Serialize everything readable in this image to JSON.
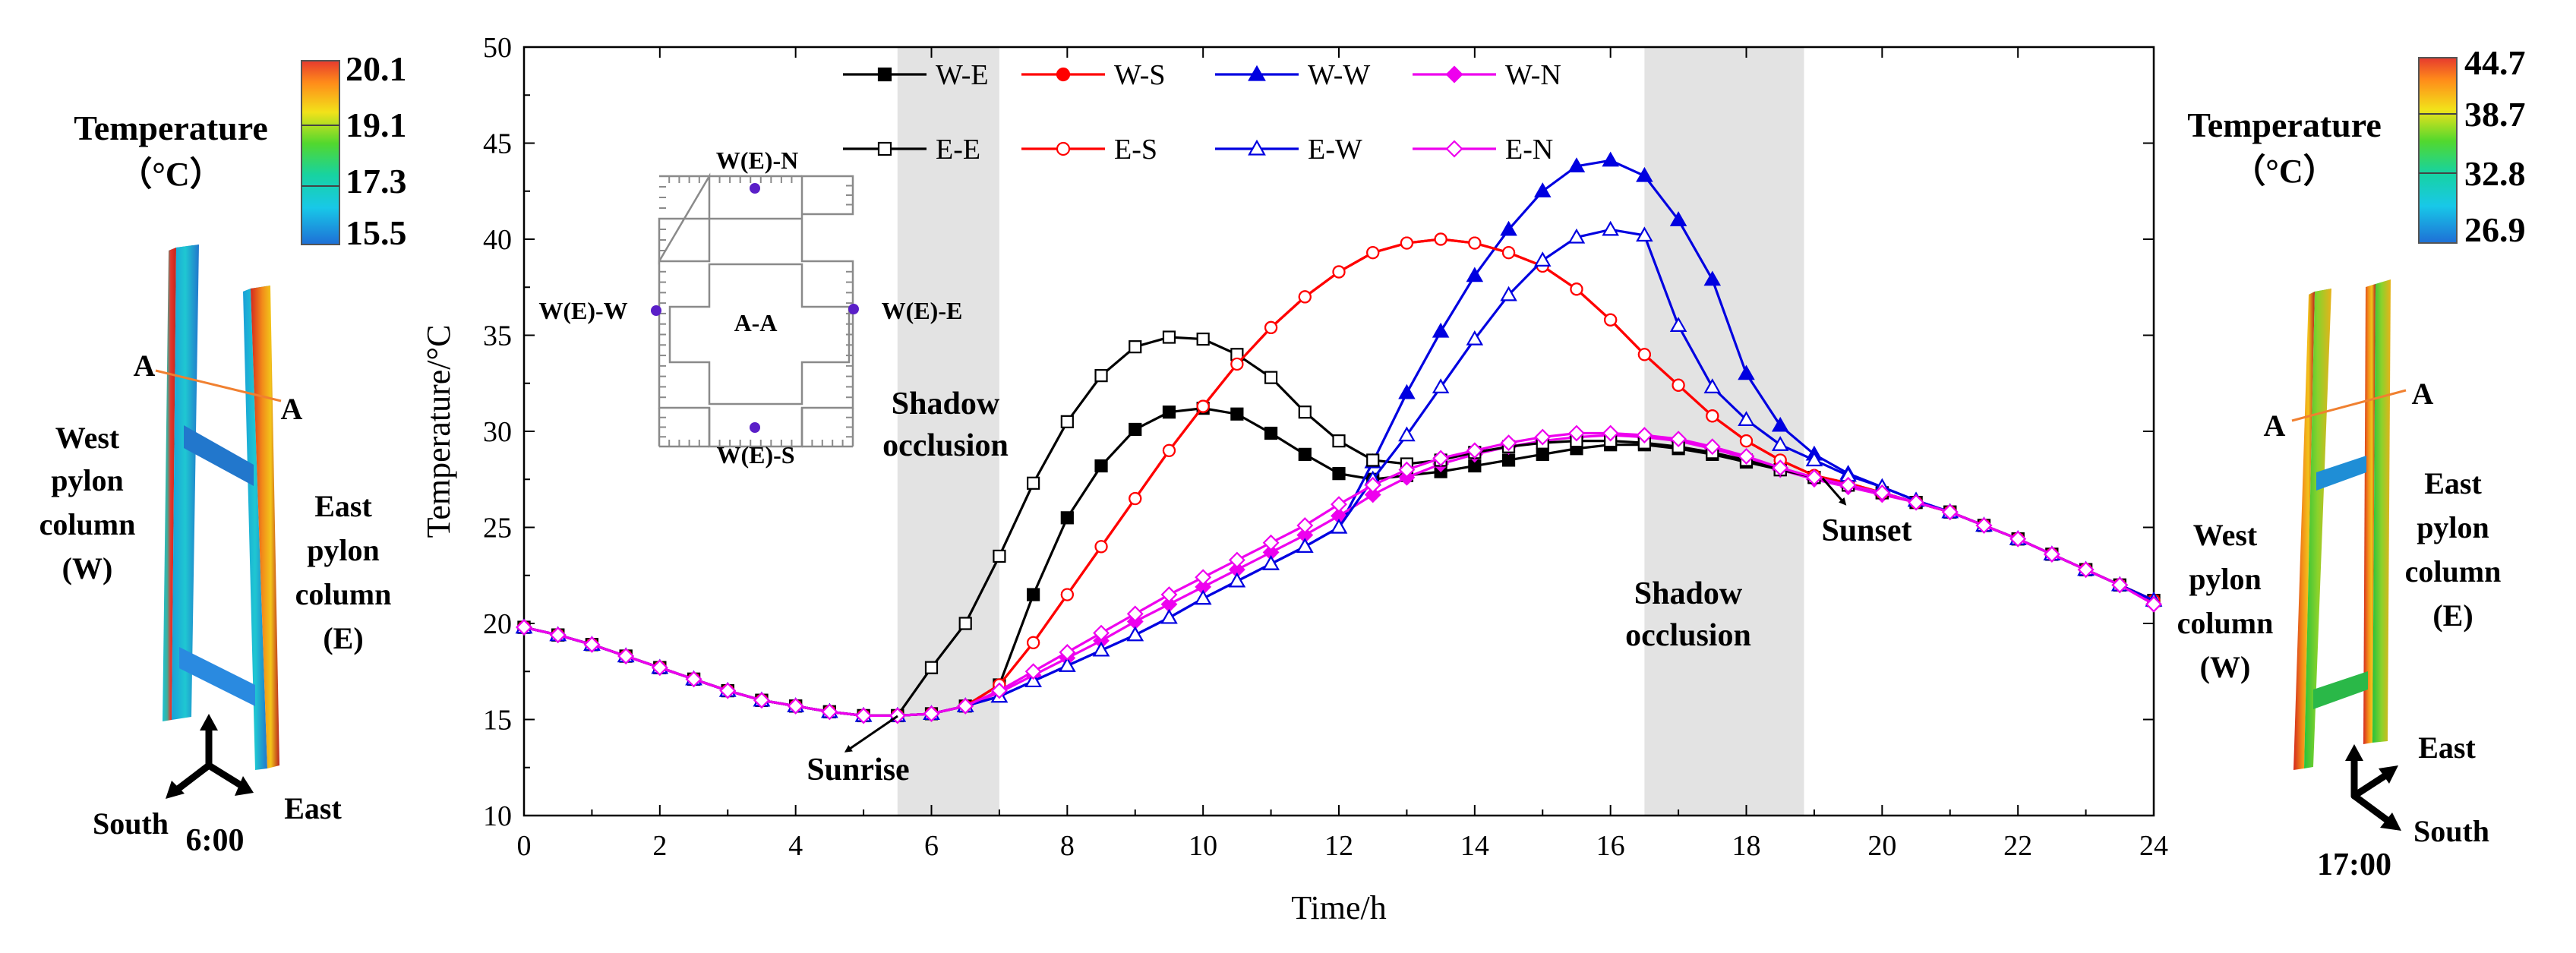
{
  "chart_data": {
    "type": "line",
    "xlabel": "Time/h",
    "ylabel": "Temperature/°C",
    "xlim": [
      0,
      24
    ],
    "ylim": [
      10,
      50
    ],
    "xticks": [
      "0",
      "2",
      "4",
      "6",
      "8",
      "10",
      "12",
      "14",
      "16",
      "18",
      "20",
      "22",
      "24"
    ],
    "yticks": [
      "10",
      "15",
      "20",
      "25",
      "30",
      "35",
      "40",
      "45",
      "50"
    ],
    "shaded_intervals": [
      [
        5.5,
        7.0
      ],
      [
        16.5,
        18.85
      ]
    ],
    "annotations": {
      "shadow_left": [
        "Shadow",
        "occlusion"
      ],
      "shadow_right": [
        "Shadow",
        "occlusion"
      ],
      "sunrise": "Sunrise",
      "sunset": "Sunset"
    },
    "x": [
      0,
      0.5,
      1,
      1.5,
      2,
      2.5,
      3,
      3.5,
      4,
      4.5,
      5,
      5.5,
      6,
      6.5,
      7,
      7.5,
      8,
      8.5,
      9,
      9.5,
      10,
      10.5,
      11,
      11.5,
      12,
      12.5,
      13,
      13.5,
      14,
      14.5,
      15,
      15.5,
      16,
      16.5,
      17,
      17.5,
      18,
      18.5,
      19,
      19.5,
      20,
      20.5,
      21,
      21.5,
      22,
      22.5,
      23,
      23.5,
      24
    ],
    "series": [
      {
        "name": "W-E",
        "color": "#000000",
        "marker": "square",
        "filled": true,
        "values": [
          19.8,
          19.4,
          18.9,
          18.3,
          17.7,
          17.1,
          16.5,
          16.0,
          15.7,
          15.4,
          15.2,
          15.2,
          15.3,
          15.7,
          16.8,
          21.5,
          25.5,
          28.2,
          30.1,
          31.0,
          31.2,
          30.9,
          29.9,
          28.8,
          27.8,
          27.5,
          27.7,
          27.9,
          28.2,
          28.5,
          28.8,
          29.1,
          29.3,
          29.3,
          29.1,
          28.8,
          28.4,
          28.0,
          27.6,
          27.2,
          26.8,
          26.3,
          25.8,
          25.1,
          24.4,
          23.6,
          22.8,
          22.0,
          21.2
        ]
      },
      {
        "name": "W-S",
        "color": "#ff0000",
        "marker": "circle",
        "filled": true,
        "values": [
          19.8,
          19.4,
          18.9,
          18.3,
          17.7,
          17.1,
          16.5,
          16.0,
          15.7,
          15.4,
          15.2,
          15.2,
          15.3,
          15.7,
          16.8,
          19.0,
          21.5,
          24.0,
          26.5,
          29.0,
          31.3,
          33.5,
          35.4,
          37.0,
          38.3,
          39.3,
          39.8,
          40.0,
          39.8,
          39.3,
          38.6,
          37.4,
          35.8,
          34.0,
          32.4,
          30.8,
          29.5,
          28.5,
          27.7,
          27.3,
          26.8,
          26.3,
          25.8,
          25.1,
          24.4,
          23.6,
          22.8,
          22.0,
          21.2
        ]
      },
      {
        "name": "W-W",
        "color": "#0000e0",
        "marker": "triangle",
        "filled": true,
        "values": [
          19.8,
          19.4,
          18.9,
          18.3,
          17.7,
          17.1,
          16.5,
          16.0,
          15.7,
          15.4,
          15.2,
          15.2,
          15.3,
          15.7,
          16.2,
          17.0,
          17.8,
          18.6,
          19.4,
          20.3,
          21.3,
          22.2,
          23.1,
          24.0,
          25.0,
          28.4,
          32.0,
          35.2,
          38.1,
          40.5,
          42.5,
          43.8,
          44.1,
          43.3,
          41.0,
          37.9,
          33.0,
          30.3,
          28.8,
          27.8,
          27.1,
          26.4,
          25.8,
          25.1,
          24.4,
          23.6,
          22.8,
          22.0,
          21.2
        ]
      },
      {
        "name": "W-N",
        "color": "#ee00ee",
        "marker": "diamond",
        "filled": true,
        "values": [
          19.8,
          19.4,
          18.9,
          18.3,
          17.7,
          17.1,
          16.5,
          16.0,
          15.7,
          15.4,
          15.2,
          15.2,
          15.3,
          15.7,
          16.4,
          17.3,
          18.2,
          19.1,
          20.1,
          21.0,
          21.9,
          22.8,
          23.7,
          24.6,
          25.6,
          26.7,
          27.6,
          28.3,
          28.8,
          29.2,
          29.5,
          29.7,
          29.8,
          29.7,
          29.5,
          29.1,
          28.6,
          28.0,
          27.5,
          27.1,
          26.7,
          26.3,
          25.8,
          25.1,
          24.4,
          23.6,
          22.8,
          22.0,
          21.0
        ]
      },
      {
        "name": "E-E",
        "color": "#000000",
        "marker": "square",
        "filled": false,
        "values": [
          19.8,
          19.4,
          18.9,
          18.3,
          17.7,
          17.1,
          16.5,
          16.0,
          15.7,
          15.4,
          15.2,
          15.2,
          17.7,
          20.0,
          23.5,
          27.3,
          30.5,
          32.9,
          34.4,
          34.9,
          34.8,
          34.0,
          32.8,
          31.0,
          29.5,
          28.5,
          28.3,
          28.5,
          28.9,
          29.2,
          29.4,
          29.5,
          29.5,
          29.4,
          29.2,
          28.9,
          28.5,
          28.0,
          27.6,
          27.2,
          26.8,
          26.3,
          25.8,
          25.1,
          24.4,
          23.6,
          22.8,
          22.0,
          21.2
        ]
      },
      {
        "name": "E-S",
        "color": "#ff0000",
        "marker": "circle",
        "filled": false,
        "values": [
          19.8,
          19.4,
          18.9,
          18.3,
          17.7,
          17.1,
          16.5,
          16.0,
          15.7,
          15.4,
          15.2,
          15.2,
          15.3,
          15.7,
          16.8,
          19.0,
          21.5,
          24.0,
          26.5,
          29.0,
          31.3,
          33.5,
          35.4,
          37.0,
          38.3,
          39.3,
          39.8,
          40.0,
          39.8,
          39.3,
          38.6,
          37.4,
          35.8,
          34.0,
          32.4,
          30.8,
          29.5,
          28.5,
          27.7,
          27.3,
          26.8,
          26.3,
          25.8,
          25.1,
          24.4,
          23.6,
          22.8,
          22.0,
          21.2
        ]
      },
      {
        "name": "E-W",
        "color": "#0000e0",
        "marker": "triangle",
        "filled": false,
        "values": [
          19.8,
          19.4,
          18.9,
          18.3,
          17.7,
          17.1,
          16.5,
          16.0,
          15.7,
          15.4,
          15.2,
          15.2,
          15.3,
          15.7,
          16.2,
          17.0,
          17.8,
          18.6,
          19.4,
          20.3,
          21.3,
          22.2,
          23.1,
          24.0,
          25.0,
          27.5,
          29.8,
          32.3,
          34.8,
          37.1,
          38.9,
          40.1,
          40.5,
          40.2,
          35.5,
          32.3,
          30.6,
          29.3,
          28.5,
          27.7,
          27.1,
          26.4,
          25.8,
          25.1,
          24.4,
          23.6,
          22.8,
          22.0,
          21.2
        ]
      },
      {
        "name": "E-N",
        "color": "#ee00ee",
        "marker": "diamond",
        "filled": false,
        "values": [
          19.8,
          19.4,
          18.9,
          18.3,
          17.7,
          17.1,
          16.5,
          16.0,
          15.7,
          15.4,
          15.2,
          15.2,
          15.3,
          15.7,
          16.5,
          17.5,
          18.5,
          19.5,
          20.5,
          21.5,
          22.4,
          23.3,
          24.2,
          25.1,
          26.2,
          27.2,
          28.0,
          28.6,
          29.0,
          29.4,
          29.7,
          29.9,
          29.9,
          29.8,
          29.6,
          29.2,
          28.7,
          28.1,
          27.6,
          27.2,
          26.8,
          26.3,
          25.8,
          25.1,
          24.4,
          23.6,
          22.8,
          22.0,
          21.0
        ]
      }
    ]
  },
  "inset": {
    "title": "A-A",
    "labels": {
      "north": "W(E)-N",
      "south": "W(E)-S",
      "west": "W(E)-W",
      "east": "W(E)-E"
    }
  },
  "left_panel": {
    "legend_title": "Temperature",
    "legend_unit": "（°C）",
    "scale_values": [
      "20.1",
      "19.1",
      "17.3",
      "15.5"
    ],
    "column_w": [
      "West",
      "pylon",
      "column",
      "(W)"
    ],
    "column_e": [
      "East",
      "pylon",
      "column",
      "(E)"
    ],
    "section_label_a1": "A",
    "section_label_a2": "A",
    "axis_south": "South",
    "axis_east": "East",
    "time": "6:00"
  },
  "right_panel": {
    "legend_title": "Temperature",
    "legend_unit": "（°C）",
    "scale_values": [
      "44.7",
      "38.7",
      "32.8",
      "26.9"
    ],
    "column_w": [
      "West",
      "pylon",
      "column",
      "(W)"
    ],
    "column_e": [
      "East",
      "pylon",
      "column",
      "(E)"
    ],
    "section_label_a1": "A",
    "section_label_a2": "A",
    "axis_east": "East",
    "axis_south": "South",
    "time": "17:00"
  },
  "colors": {
    "black": "#000000",
    "red": "#ff0000",
    "blue": "#0000e0",
    "magenta": "#ee00ee",
    "shade": "#e3e3e3"
  }
}
